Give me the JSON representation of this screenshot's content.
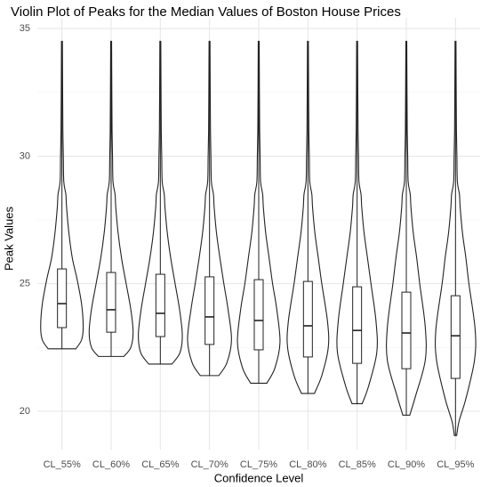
{
  "chart_data": {
    "type": "violin",
    "title": "Violin Plot of Peaks for the Median Values of Boston House Prices",
    "x_label": "Confidence Level",
    "y_label": "Peak Values",
    "categories": [
      "CL_55%",
      "CL_60%",
      "CL_65%",
      "CL_70%",
      "CL_75%",
      "CL_80%",
      "CL_85%",
      "CL_90%",
      "CL_95%"
    ],
    "ylim": [
      18.5,
      35.42
    ],
    "yticks": [
      20,
      25,
      30,
      35
    ],
    "y_minor_ticks": [
      22.5,
      27.5,
      32.5
    ],
    "grid": true,
    "color": "#222222",
    "box_fill": "#ffffff",
    "violins": [
      {
        "min": 22.45,
        "q1": 23.28,
        "median": 24.22,
        "q3": 25.58,
        "max": 34.5,
        "density_y": [
          22.45,
          22.8,
          23.3,
          24.2,
          25.2,
          26,
          27,
          28,
          28.5,
          29,
          30,
          31,
          32.5,
          34.5
        ],
        "density": [
          0.6,
          0.85,
          0.92,
          0.85,
          0.65,
          0.45,
          0.3,
          0.2,
          0.17,
          0.08,
          0.06,
          0.04,
          0.03,
          0.02
        ]
      },
      {
        "min": 22.15,
        "q1": 23.1,
        "median": 23.98,
        "q3": 25.44,
        "max": 34.5,
        "density_y": [
          22.15,
          22.5,
          23.1,
          24,
          25,
          26,
          27,
          28,
          28.5,
          29,
          30,
          31,
          32.5,
          34.5
        ],
        "density": [
          0.55,
          0.85,
          0.95,
          0.85,
          0.65,
          0.45,
          0.3,
          0.2,
          0.17,
          0.08,
          0.06,
          0.04,
          0.03,
          0.02
        ]
      },
      {
        "min": 21.85,
        "q1": 22.93,
        "median": 23.84,
        "q3": 25.37,
        "max": 34.5,
        "density_y": [
          21.85,
          22.3,
          23,
          24,
          25,
          26,
          27,
          28,
          28.5,
          29,
          30,
          31,
          32.5,
          34.5
        ],
        "density": [
          0.5,
          0.85,
          0.95,
          0.83,
          0.64,
          0.45,
          0.3,
          0.2,
          0.17,
          0.08,
          0.06,
          0.04,
          0.03,
          0.02
        ]
      },
      {
        "min": 21.4,
        "q1": 22.62,
        "median": 23.7,
        "q3": 25.27,
        "max": 34.5,
        "density_y": [
          21.4,
          21.9,
          22.8,
          24,
          25,
          26,
          27,
          28,
          28.5,
          29,
          30,
          31,
          32.5,
          34.5
        ],
        "density": [
          0.4,
          0.75,
          0.95,
          0.8,
          0.62,
          0.45,
          0.3,
          0.2,
          0.17,
          0.08,
          0.06,
          0.04,
          0.03,
          0.02
        ]
      },
      {
        "min": 21.1,
        "q1": 22.41,
        "median": 23.56,
        "q3": 25.16,
        "max": 34.5,
        "density_y": [
          21.1,
          21.7,
          22.7,
          24,
          25,
          26,
          27,
          28,
          28.5,
          29,
          30,
          31,
          32.5,
          34.5
        ],
        "density": [
          0.35,
          0.7,
          0.92,
          0.78,
          0.6,
          0.45,
          0.3,
          0.2,
          0.17,
          0.08,
          0.06,
          0.04,
          0.03,
          0.02
        ]
      },
      {
        "min": 20.7,
        "q1": 22.13,
        "median": 23.35,
        "q3": 25.09,
        "max": 34.5,
        "density_y": [
          20.7,
          21.4,
          22.5,
          23.5,
          25,
          26,
          27,
          28,
          28.5,
          29,
          30,
          31,
          32.5,
          34.5
        ],
        "density": [
          0.28,
          0.6,
          0.88,
          0.85,
          0.6,
          0.45,
          0.3,
          0.2,
          0.17,
          0.08,
          0.06,
          0.04,
          0.03,
          0.02
        ]
      },
      {
        "min": 20.3,
        "q1": 21.88,
        "median": 23.17,
        "q3": 24.88,
        "max": 34.5,
        "density_y": [
          20.3,
          21,
          22.3,
          23.5,
          25,
          26,
          27,
          28,
          28.5,
          29,
          30,
          31,
          32.5,
          34.5
        ],
        "density": [
          0.22,
          0.5,
          0.85,
          0.82,
          0.6,
          0.45,
          0.3,
          0.2,
          0.17,
          0.08,
          0.06,
          0.04,
          0.03,
          0.02
        ]
      },
      {
        "min": 19.85,
        "q1": 21.67,
        "median": 23.07,
        "q3": 24.67,
        "max": 34.5,
        "density_y": [
          19.85,
          20.6,
          22,
          23.3,
          25,
          26,
          27,
          28,
          28.5,
          29,
          30,
          31,
          32.5,
          34.5
        ],
        "density": [
          0.15,
          0.4,
          0.82,
          0.82,
          0.58,
          0.45,
          0.3,
          0.2,
          0.17,
          0.08,
          0.06,
          0.04,
          0.03,
          0.02
        ]
      },
      {
        "min": 19.05,
        "q1": 21.29,
        "median": 22.96,
        "q3": 24.53,
        "max": 34.5,
        "density_y": [
          19.05,
          19.6,
          20.5,
          22,
          23.2,
          25,
          26,
          27,
          28,
          28.5,
          29,
          30,
          31,
          32.5,
          34.5
        ],
        "density": [
          0.05,
          0.15,
          0.45,
          0.82,
          0.85,
          0.58,
          0.45,
          0.3,
          0.2,
          0.17,
          0.08,
          0.06,
          0.04,
          0.03,
          0.02
        ]
      }
    ]
  }
}
